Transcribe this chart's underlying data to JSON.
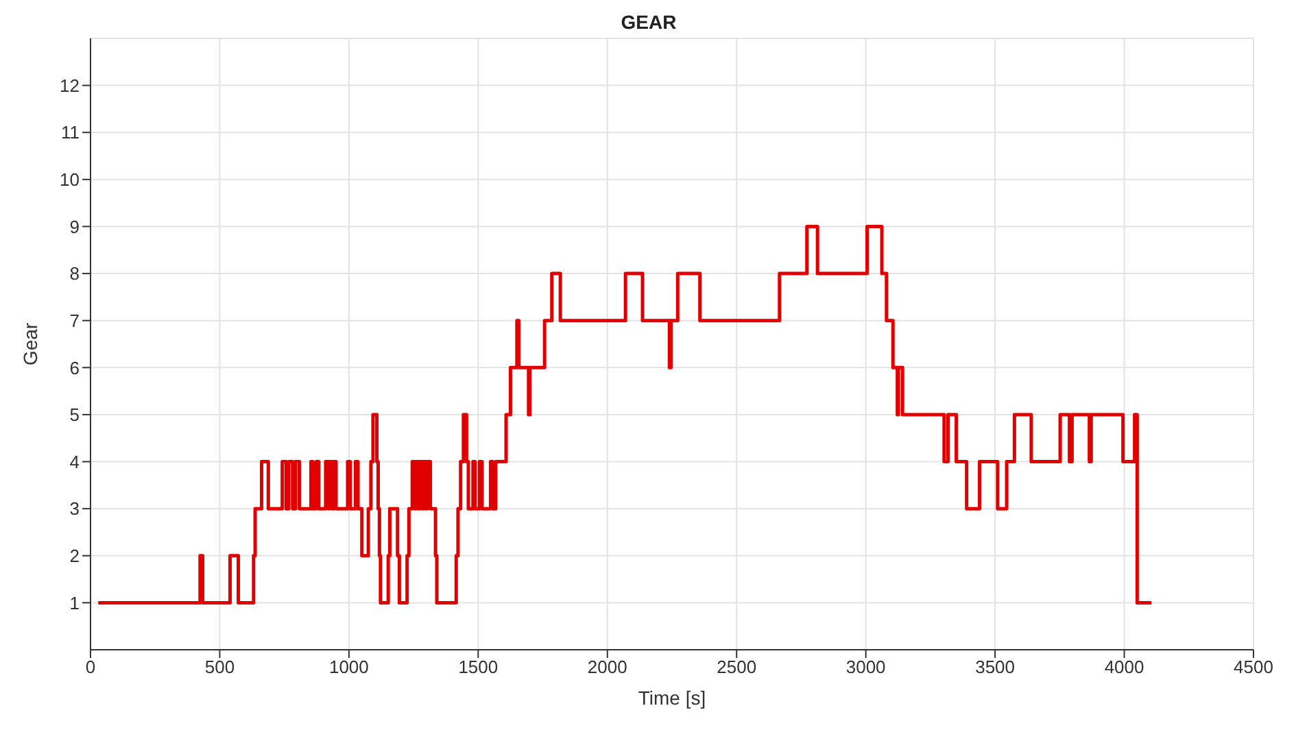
{
  "chart_data": {
    "type": "step",
    "title": "GEAR",
    "xlabel": "Time [s]",
    "ylabel": "Gear",
    "xlim": [
      0,
      4500
    ],
    "xticks": [
      0,
      500,
      1000,
      1500,
      2000,
      2500,
      3000,
      3500,
      4000,
      4500
    ],
    "ylim": [
      0,
      13
    ],
    "yticks": [
      1,
      2,
      3,
      4,
      5,
      6,
      7,
      8,
      9,
      10,
      11,
      12
    ],
    "grid": true,
    "legend": false,
    "marker": "none",
    "line_style": "solid",
    "series": [
      {
        "color": "#e00000",
        "x": [
          30,
          424,
          434,
          540,
          572,
          631,
          637,
          662,
          688,
          742,
          757,
          767,
          782,
          793,
          808,
          853,
          860,
          873,
          883,
          910,
          920,
          925,
          935,
          940,
          950,
          995,
          1005,
          1025,
          1035,
          1050,
          1075,
          1085,
          1093,
          1108,
          1113,
          1118,
          1122,
          1152,
          1158,
          1188,
          1195,
          1225,
          1232,
          1245,
          1255,
          1262,
          1270,
          1275,
          1285,
          1290,
          1298,
          1303,
          1315,
          1335,
          1340,
          1415,
          1422,
          1432,
          1443,
          1455,
          1462,
          1480,
          1488,
          1505,
          1515,
          1548,
          1556,
          1568,
          1608,
          1625,
          1650,
          1657,
          1695,
          1700,
          1757,
          1785,
          1818,
          2070,
          2136,
          2240,
          2246,
          2272,
          2358,
          2666,
          2772,
          2813,
          3005,
          3062,
          3080,
          3105,
          3122,
          3126,
          3142,
          3303,
          3318,
          3350,
          3390,
          3440,
          3510,
          3545,
          3575,
          3640,
          3752,
          3788,
          3798,
          3865,
          3872,
          3995,
          4040,
          4050,
          4105
        ],
        "values": [
          1,
          2,
          1,
          2,
          1,
          2,
          3,
          4,
          3,
          4,
          3,
          4,
          3,
          4,
          3,
          4,
          3,
          4,
          3,
          4,
          3,
          4,
          3,
          4,
          3,
          4,
          3,
          4,
          3,
          2,
          3,
          4,
          5,
          4,
          3,
          2,
          1,
          2,
          3,
          2,
          1,
          2,
          3,
          4,
          3,
          4,
          3,
          4,
          3,
          4,
          3,
          4,
          3,
          2,
          1,
          2,
          3,
          4,
          5,
          4,
          3,
          4,
          3,
          4,
          3,
          4,
          3,
          4,
          5,
          6,
          7,
          6,
          5,
          6,
          7,
          8,
          7,
          8,
          7,
          6,
          7,
          8,
          7,
          8,
          9,
          8,
          9,
          8,
          7,
          6,
          5,
          6,
          5,
          4,
          5,
          4,
          3,
          4,
          3,
          4,
          5,
          4,
          5,
          4,
          5,
          4,
          5,
          4,
          5,
          1,
          1
        ]
      }
    ]
  }
}
